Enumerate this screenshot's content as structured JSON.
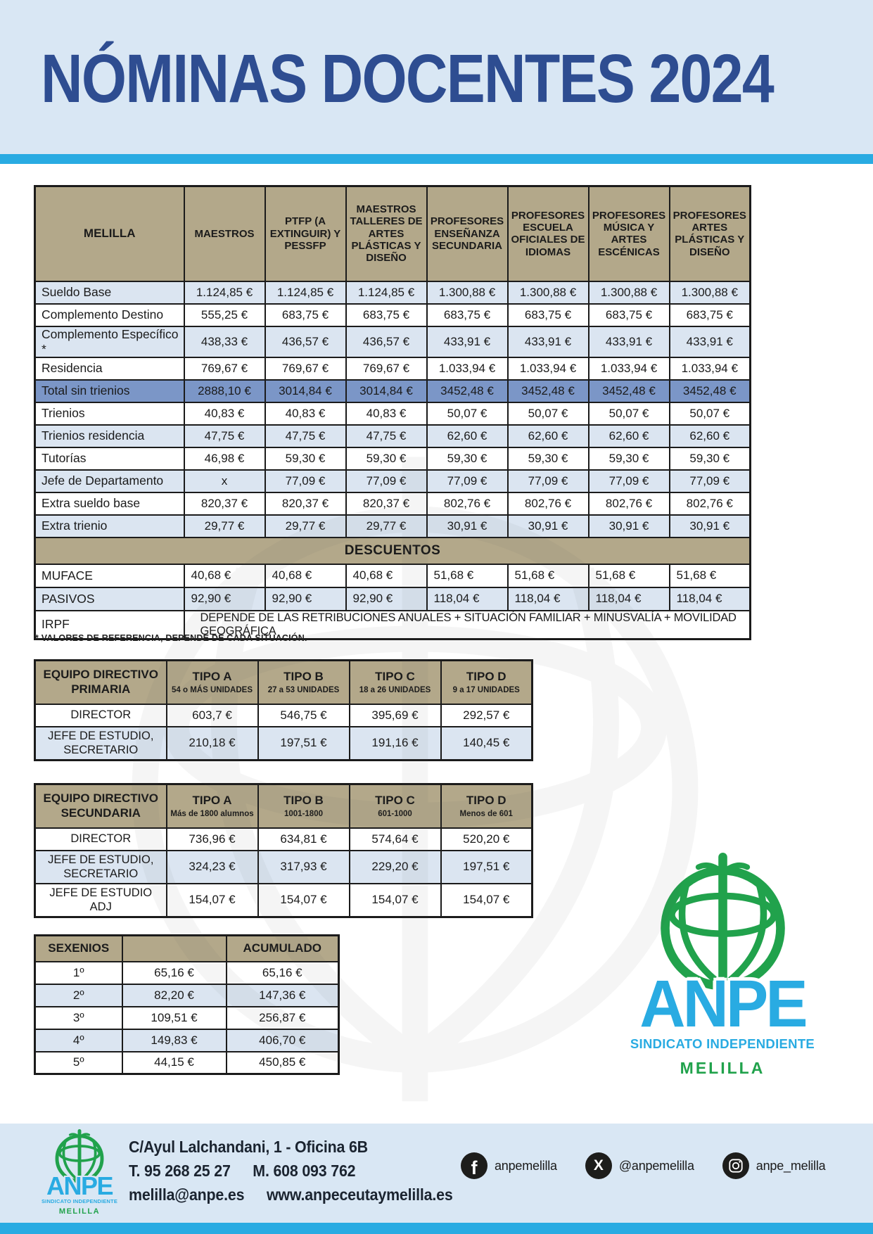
{
  "title": "NÓMINAS DOCENTES 2024",
  "colors": {
    "accent_cyan": "#29abe2",
    "title_blue": "#2e4d91",
    "header_tan": "#b3a88a",
    "row_light_blue": "#dbe5f1",
    "total_row_blue": "#7b96c7",
    "logo_green": "#21a24c",
    "banner_bg": "#d9e7f4"
  },
  "main_table": {
    "corner_label": "MELILLA",
    "columns": [
      "MAESTROS",
      "PTFP (A EXTINGUIR) Y PESSFP",
      "MAESTROS TALLERES DE ARTES PLÁSTICAS Y DISEÑO",
      "PROFESORES ENSEÑANZA SECUNDARIA",
      "PROFESORES ESCUELA OFICIALES DE IDIOMAS",
      "PROFESORES MÚSICA Y ARTES ESCÉNICAS",
      "PROFESORES ARTES PLÁSTICAS Y DISEÑO"
    ],
    "rows": [
      {
        "label": "Sueldo Base",
        "shade": "b",
        "values": [
          "1.124,85 €",
          "1.124,85 €",
          "1.124,85 €",
          "1.300,88 €",
          "1.300,88 €",
          "1.300,88 €",
          "1.300,88 €"
        ]
      },
      {
        "label": "Complemento Destino",
        "shade": "w",
        "values": [
          "555,25 €",
          "683,75 €",
          "683,75 €",
          "683,75 €",
          "683,75 €",
          "683,75 €",
          "683,75 €"
        ]
      },
      {
        "label": "Complemento Específico *",
        "shade": "b",
        "values": [
          "438,33 €",
          "436,57 €",
          "436,57 €",
          "433,91 €",
          "433,91 €",
          "433,91 €",
          "433,91 €"
        ]
      },
      {
        "label": "Residencia",
        "shade": "w",
        "values": [
          "769,67 €",
          "769,67 €",
          "769,67 €",
          "1.033,94 €",
          "1.033,94 €",
          "1.033,94 €",
          "1.033,94 €"
        ]
      },
      {
        "label": "Total sin trienios",
        "shade": "total",
        "values": [
          "2888,10 €",
          "3014,84 €",
          "3014,84 €",
          "3452,48 €",
          "3452,48 €",
          "3452,48 €",
          "3452,48 €"
        ]
      },
      {
        "label": "Trienios",
        "shade": "w",
        "values": [
          "40,83 €",
          "40,83 €",
          "40,83 €",
          "50,07 €",
          "50,07 €",
          "50,07 €",
          "50,07 €"
        ]
      },
      {
        "label": "Trienios residencia",
        "shade": "b",
        "values": [
          "47,75 €",
          "47,75 €",
          "47,75 €",
          "62,60 €",
          "62,60 €",
          "62,60 €",
          "62,60 €"
        ]
      },
      {
        "label": "Tutorías",
        "shade": "w",
        "values": [
          "46,98 €",
          "59,30 €",
          "59,30 €",
          "59,30 €",
          "59,30 €",
          "59,30 €",
          "59,30 €"
        ]
      },
      {
        "label": "Jefe de Departamento",
        "shade": "b",
        "values": [
          "x",
          "77,09 €",
          "77,09 €",
          "77,09 €",
          "77,09 €",
          "77,09 €",
          "77,09 €"
        ]
      },
      {
        "label": "Extra sueldo base",
        "shade": "w",
        "values": [
          "820,37 €",
          "820,37 €",
          "820,37 €",
          "802,76 €",
          "802,76 €",
          "802,76 €",
          "802,76 €"
        ]
      },
      {
        "label": "Extra trienio",
        "shade": "b",
        "values": [
          "29,77 €",
          "29,77 €",
          "29,77 €",
          "30,91 €",
          "30,91 €",
          "30,91 €",
          "30,91 €"
        ]
      }
    ],
    "descuentos_header": "DESCUENTOS",
    "descuentos_rows": [
      {
        "label": "MUFACE",
        "shade": "w",
        "values": [
          "40,68 €",
          "40,68 €",
          "40,68 €",
          "51,68 €",
          "51,68 €",
          "51,68 €",
          "51,68 €"
        ]
      },
      {
        "label": "PASIVOS",
        "shade": "b",
        "values": [
          "92,90 €",
          "92,90 €",
          "92,90 €",
          "118,04 €",
          "118,04 €",
          "118,04 €",
          "118,04 €"
        ]
      }
    ],
    "irpf": {
      "label": "IRPF",
      "text": "DEPENDE DE LAS RETRIBUCIONES ANUALES + SITUACIÓN FAMILIAR + MINUSVALÍA + MOVILIDAD GEOGRÁFICA"
    }
  },
  "footnote": "* VALORES DE REFERENCIA, DEPENDE DE CADA SITUACIÓN.",
  "primaria_table": {
    "title": "EQUIPO DIRECTIVO PRIMARIA",
    "columns": [
      {
        "name": "TIPO A",
        "sub": "54 o MÁS UNIDADES"
      },
      {
        "name": "TIPO B",
        "sub": "27 a 53 UNIDADES"
      },
      {
        "name": "TIPO C",
        "sub": "18 a 26 UNIDADES"
      },
      {
        "name": "TIPO D",
        "sub": "9 a 17 UNIDADES"
      }
    ],
    "rows": [
      {
        "label": "DIRECTOR",
        "shade": "w",
        "values": [
          "603,7 €",
          "546,75 €",
          "395,69 €",
          "292,57 €"
        ]
      },
      {
        "label": "JEFE DE ESTUDIO, SECRETARIO",
        "shade": "b",
        "values": [
          "210,18 €",
          "197,51 €",
          "191,16 €",
          "140,45 €"
        ]
      }
    ]
  },
  "secundaria_table": {
    "title": "EQUIPO DIRECTIVO SECUNDARIA",
    "columns": [
      {
        "name": "TIPO A",
        "sub": "Más de 1800 alumnos"
      },
      {
        "name": "TIPO B",
        "sub": "1001-1800"
      },
      {
        "name": "TIPO C",
        "sub": "601-1000"
      },
      {
        "name": "TIPO D",
        "sub": "Menos de 601"
      }
    ],
    "rows": [
      {
        "label": "DIRECTOR",
        "shade": "w",
        "values": [
          "736,96 €",
          "634,81 €",
          "574,64 €",
          "520,20 €"
        ]
      },
      {
        "label": "JEFE DE ESTUDIO, SECRETARIO",
        "shade": "b",
        "values": [
          "324,23 €",
          "317,93 €",
          "229,20 €",
          "197,51 €"
        ]
      },
      {
        "label": "JEFE DE ESTUDIO ADJ",
        "shade": "w",
        "values": [
          "154,07 €",
          "154,07 €",
          "154,07 €",
          "154,07 €"
        ]
      }
    ]
  },
  "sexenios_table": {
    "headers": [
      "SEXENIOS",
      "",
      "ACUMULADO"
    ],
    "rows": [
      {
        "shade": "w",
        "cells": [
          "1º",
          "65,16 €",
          "65,16 €"
        ]
      },
      {
        "shade": "b",
        "cells": [
          "2º",
          "82,20 €",
          "147,36 €"
        ]
      },
      {
        "shade": "w",
        "cells": [
          "3º",
          "109,51 €",
          "256,87 €"
        ]
      },
      {
        "shade": "b",
        "cells": [
          "4º",
          "149,83 €",
          "406,70 €"
        ]
      },
      {
        "shade": "w",
        "cells": [
          "5º",
          "44,15 €",
          "450,85 €"
        ]
      }
    ]
  },
  "logo": {
    "name": "ANPE",
    "tagline": "SINDICATO INDEPENDIENTE",
    "region": "MELILLA"
  },
  "footer": {
    "address": "C/Ayul Lalchandani, 1 - Oficina 6B",
    "phone": "T. 95 268 25 27",
    "mobile": "M. 608 093 762",
    "email": "melilla@anpe.es",
    "website": "www.anpeceutaymelilla.es",
    "socials": [
      {
        "network": "facebook",
        "handle": "anpemelilla"
      },
      {
        "network": "x-twitter",
        "handle": "@anpemelilla"
      },
      {
        "network": "instagram",
        "handle": "anpe_melilla"
      }
    ]
  }
}
